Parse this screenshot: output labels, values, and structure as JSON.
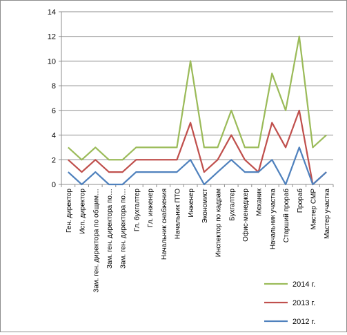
{
  "chart_data": {
    "type": "line",
    "title": "",
    "xlabel": "",
    "ylabel": "",
    "ylim": [
      0,
      14
    ],
    "yticks": [
      0,
      2,
      4,
      6,
      8,
      10,
      12,
      14
    ],
    "yticks_labels": [
      "0",
      "2",
      "4",
      "6",
      "8",
      "10",
      "12",
      "14"
    ],
    "grid": "horizontal",
    "legend_position": "right-bottom",
    "categories": [
      "Ген. директор",
      "Исп. директор",
      "Зам. ген. директора по общим…",
      "Зам. ген. директора по…",
      "Зам. ген. директора по…",
      "Гл. бухгалтер",
      "Гл. инженер",
      "Начальник снабжения",
      "Начальник ПТО",
      "Инженер",
      "Экономист",
      "Инспектор по кадрам",
      "Бухгалтер",
      "Офис-менеджер",
      "Механик",
      "Начальник участка",
      "Старший прораб",
      "Прораб",
      "Мастер СМР",
      "Мастер участка"
    ],
    "series": [
      {
        "name": "2014 г.",
        "color": "#9bbb59",
        "values": [
          3,
          2,
          3,
          2,
          2,
          3,
          3,
          3,
          3,
          10,
          3,
          3,
          6,
          3,
          3,
          9,
          6,
          12,
          3,
          4
        ]
      },
      {
        "name": "2013 г.",
        "color": "#c0504d",
        "values": [
          2,
          1,
          2,
          1,
          1,
          2,
          2,
          2,
          2,
          5,
          1,
          2,
          4,
          2,
          1,
          5,
          3,
          6,
          0,
          1
        ]
      },
      {
        "name": "2012 г.",
        "color": "#4f81bd",
        "values": [
          1,
          0,
          1,
          0,
          0,
          1,
          1,
          1,
          1,
          2,
          0,
          1,
          2,
          1,
          1,
          2,
          0,
          3,
          0,
          1
        ]
      }
    ]
  }
}
